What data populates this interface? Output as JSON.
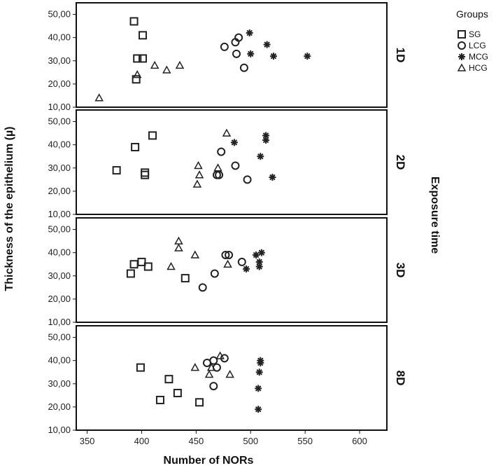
{
  "chart_data": {
    "type": "scatter",
    "xlabel": "Number of NORs",
    "ylabel": "Thickness of the epithelium (µ)",
    "facet_title": "Exposure time",
    "xlim": [
      340,
      625
    ],
    "ylim": [
      10,
      55
    ],
    "x_ticks": [
      {
        "v": 350,
        "label": "350"
      },
      {
        "v": 400,
        "label": "400"
      },
      {
        "v": 450,
        "label": "450"
      },
      {
        "v": 500,
        "label": "500"
      },
      {
        "v": 550,
        "label": "550"
      },
      {
        "v": 600,
        "label": "600"
      }
    ],
    "y_ticks": [
      {
        "v": 10,
        "label": "10,00"
      },
      {
        "v": 20,
        "label": "20,00"
      },
      {
        "v": 30,
        "label": "30,00"
      },
      {
        "v": 40,
        "label": "40,00"
      },
      {
        "v": 50,
        "label": "50,00"
      }
    ],
    "legend": {
      "title": "Groups",
      "placement": "right",
      "entries": [
        {
          "key": "SG",
          "label": "SG",
          "marker": "square"
        },
        {
          "key": "LCG",
          "label": "LCG",
          "marker": "circle"
        },
        {
          "key": "MCG",
          "label": "MCG",
          "marker": "asterisk"
        },
        {
          "key": "HCG",
          "label": "HCG",
          "marker": "triangle"
        }
      ]
    },
    "panels": [
      {
        "label": "1D",
        "series": {
          "SG": [
            [
              393,
              47
            ],
            [
              401,
              41
            ],
            [
              396,
              31
            ],
            [
              401,
              31
            ],
            [
              395,
              22
            ]
          ],
          "LCG": [
            [
              476,
              36
            ],
            [
              486,
              38
            ],
            [
              489,
              40
            ],
            [
              487,
              33
            ],
            [
              494,
              27
            ]
          ],
          "MCG": [
            [
              499,
              42
            ],
            [
              515,
              37
            ],
            [
              500,
              33
            ],
            [
              521,
              32
            ],
            [
              552,
              32
            ]
          ],
          "HCG": [
            [
              361,
              14
            ],
            [
              396,
              24
            ],
            [
              412,
              28
            ],
            [
              423,
              26
            ],
            [
              435,
              28
            ]
          ]
        }
      },
      {
        "label": "2D",
        "series": {
          "SG": [
            [
              377,
              29
            ],
            [
              394,
              39
            ],
            [
              410,
              44
            ],
            [
              403,
              28
            ],
            [
              403,
              27
            ]
          ],
          "LCG": [
            [
              473,
              37
            ],
            [
              486,
              31
            ],
            [
              469,
              27
            ],
            [
              471,
              27
            ],
            [
              497,
              25
            ]
          ],
          "MCG": [
            [
              485,
              41
            ],
            [
              514,
              44
            ],
            [
              514,
              42
            ],
            [
              509,
              35
            ],
            [
              520,
              26
            ]
          ],
          "HCG": [
            [
              478,
              45
            ],
            [
              452,
              31
            ],
            [
              470,
              30
            ],
            [
              453,
              27
            ],
            [
              451,
              23
            ]
          ]
        }
      },
      {
        "label": "3D",
        "series": {
          "SG": [
            [
              393,
              35
            ],
            [
              400,
              36
            ],
            [
              406,
              34
            ],
            [
              390,
              31
            ],
            [
              440,
              29
            ]
          ],
          "LCG": [
            [
              477,
              39
            ],
            [
              480,
              39
            ],
            [
              492,
              36
            ],
            [
              467,
              31
            ],
            [
              456,
              25
            ]
          ],
          "MCG": [
            [
              510,
              40
            ],
            [
              505,
              39
            ],
            [
              508,
              36
            ],
            [
              508,
              34
            ],
            [
              496,
              33
            ]
          ],
          "HCG": [
            [
              434,
              45
            ],
            [
              434,
              42
            ],
            [
              449,
              39
            ],
            [
              427,
              34
            ],
            [
              479,
              35
            ]
          ]
        }
      },
      {
        "label": "8D",
        "series": {
          "SG": [
            [
              399,
              37
            ],
            [
              425,
              32
            ],
            [
              433,
              26
            ],
            [
              417,
              23
            ],
            [
              453,
              22
            ]
          ],
          "LCG": [
            [
              460,
              39
            ],
            [
              466,
              40
            ],
            [
              476,
              41
            ],
            [
              469,
              37
            ],
            [
              466,
              29
            ]
          ],
          "MCG": [
            [
              509,
              40
            ],
            [
              509,
              39
            ],
            [
              508,
              35
            ],
            [
              507,
              28
            ],
            [
              507,
              19
            ]
          ],
          "HCG": [
            [
              472,
              42
            ],
            [
              449,
              37
            ],
            [
              464,
              37
            ],
            [
              462,
              34
            ],
            [
              481,
              34
            ]
          ]
        }
      }
    ]
  }
}
